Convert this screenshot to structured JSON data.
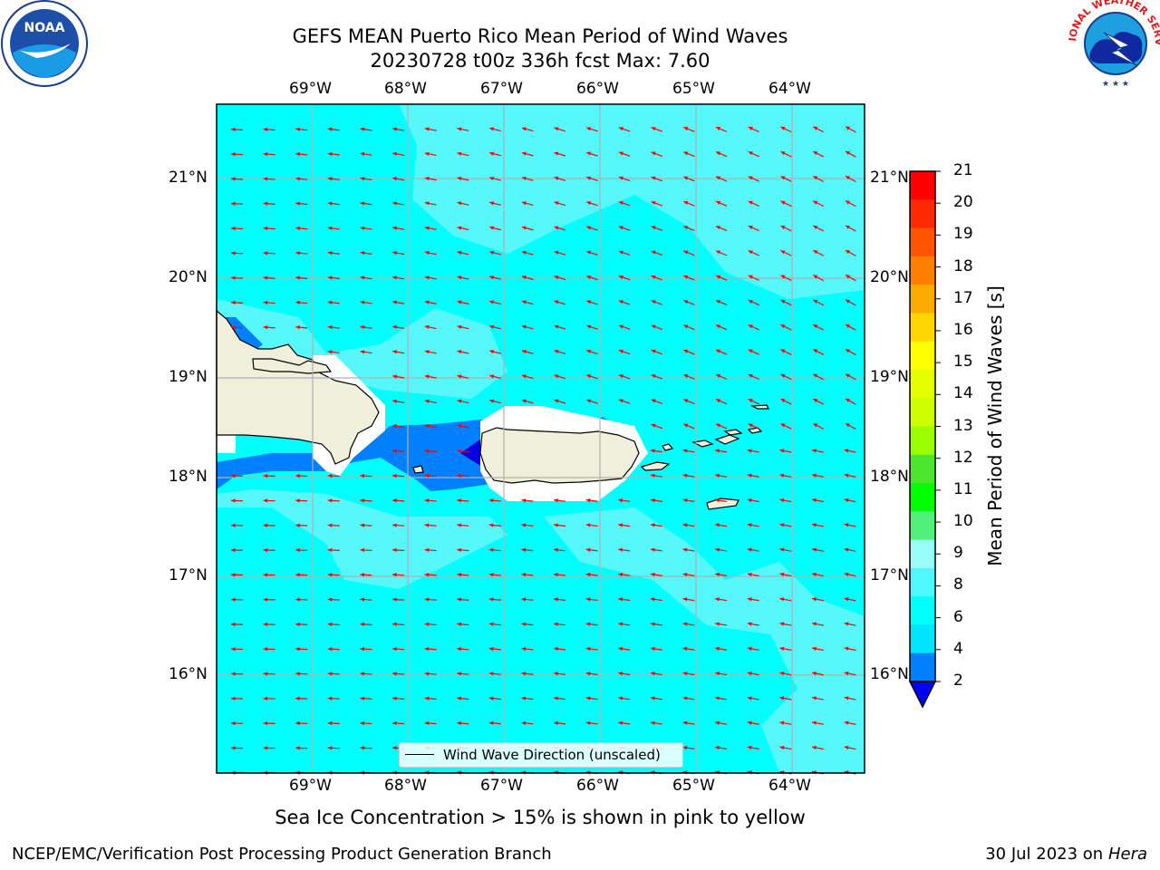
{
  "title_line1": "GEFS MEAN Puerto Rico Mean Period of Wind Waves",
  "title_line2": "20230728 t00z 336h fcst   Max: 7.60",
  "subtitle": "Sea Ice Concentration > 15% is shown in pink to yellow",
  "footer_left": "NCEP/EMC/Verification Post Processing Product Generation Branch",
  "footer_right_prefix": "30 Jul 2023 on ",
  "footer_right_machine": "Hera",
  "longitude_labels": [
    "69°W",
    "68°W",
    "67°W",
    "66°W",
    "65°W",
    "64°W"
  ],
  "latitude_labels": [
    "21°N",
    "20°N",
    "19°N",
    "18°N",
    "17°N",
    "16°N"
  ],
  "legend_label": "Wind Wave Direction (unscaled)",
  "colorbar": {
    "label": "Mean Period of Wind Waves [s]",
    "ticks": [
      "21",
      "20",
      "19",
      "18",
      "17",
      "16",
      "15",
      "14",
      "13",
      "12",
      "11",
      "10",
      "9",
      "8",
      "6",
      "4",
      "2"
    ],
    "colors": [
      "#ff0000",
      "#ff2a00",
      "#ff5500",
      "#ff8000",
      "#ffaa00",
      "#ffd500",
      "#ffff00",
      "#e6ff00",
      "#cdff00",
      "#9bff00",
      "#4be62d",
      "#00ff00",
      "#50f07a",
      "#98fff8",
      "#4ff7ff",
      "#00ffff",
      "#00e5ff",
      "#0080ff",
      "#0000ff"
    ],
    "extend": "min"
  },
  "map_colors": {
    "ocean_main": "#00ffff",
    "ocean_light": "#56f8fb",
    "ocean_mid": "#0080ff",
    "ocean_deep": "#0000e0",
    "land": "#efefdc",
    "arrow": "#ff0000",
    "grid": "#b0b0b0"
  },
  "logos": {
    "left": "NOAA",
    "right": "NATIONAL WEATHER SERVICE"
  }
}
